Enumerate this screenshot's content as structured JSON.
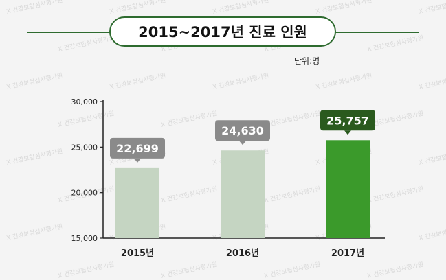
{
  "title": "2015~2017년 진료 인원",
  "unit_label": "단위:명",
  "watermark_text": "건강보험심사평가원",
  "colors": {
    "title_border": "#2e6b2f",
    "bar_default": "#c5d5c2",
    "bar_highlight": "#3b9a2b",
    "label_default": "#8a8a8a",
    "label_highlight": "#2a5a1e"
  },
  "chart_data": {
    "type": "bar",
    "categories": [
      "2015년",
      "2016년",
      "2017년"
    ],
    "values": [
      22699,
      24630,
      25757
    ],
    "value_labels": [
      "22,699",
      "24,630",
      "25,757"
    ],
    "highlight_index": 2,
    "ylim": [
      15000,
      30000
    ],
    "yticks": [
      15000,
      20000,
      25000,
      30000
    ],
    "ytick_labels": [
      "15,000",
      "20,000",
      "25,000",
      "30,000"
    ],
    "title": "2015~2017년 진료 인원",
    "xlabel": "",
    "ylabel": "",
    "grid": false
  }
}
